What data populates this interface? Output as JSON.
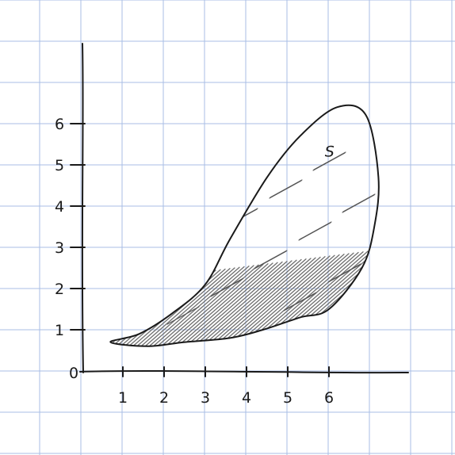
{
  "diagram": {
    "colors": {
      "grid": "#a9bde6",
      "ink": "#1a1a1a",
      "paper": "#ffffff"
    },
    "origin_label": "0",
    "x_ticks": [
      {
        "value": 1,
        "label": "1"
      },
      {
        "value": 2,
        "label": "2"
      },
      {
        "value": 3,
        "label": "3"
      },
      {
        "value": 4,
        "label": "4"
      },
      {
        "value": 5,
        "label": "5"
      },
      {
        "value": 6,
        "label": "6"
      }
    ],
    "y_ticks": [
      {
        "value": 1,
        "label": "1"
      },
      {
        "value": 2,
        "label": "2"
      },
      {
        "value": 3,
        "label": "3"
      },
      {
        "value": 4,
        "label": "4"
      },
      {
        "value": 5,
        "label": "5"
      },
      {
        "value": 6,
        "label": "6"
      }
    ],
    "region": {
      "label": "S",
      "label_at": [
        5.9,
        5.2
      ],
      "shaded": true,
      "boundary": [
        [
          0.7,
          0.7
        ],
        [
          1.6,
          0.6
        ],
        [
          2.5,
          0.7
        ],
        [
          3.6,
          0.8
        ],
        [
          4.4,
          1.0
        ],
        [
          5.3,
          1.3
        ],
        [
          6.0,
          1.5
        ],
        [
          6.8,
          2.5
        ],
        [
          7.1,
          3.5
        ],
        [
          7.2,
          4.7
        ],
        [
          6.9,
          6.2
        ],
        [
          6.2,
          6.4
        ],
        [
          5.3,
          5.7
        ],
        [
          4.5,
          4.7
        ],
        [
          3.6,
          3.2
        ],
        [
          3.0,
          2.1
        ],
        [
          2.2,
          1.4
        ],
        [
          1.4,
          0.9
        ]
      ]
    }
  }
}
